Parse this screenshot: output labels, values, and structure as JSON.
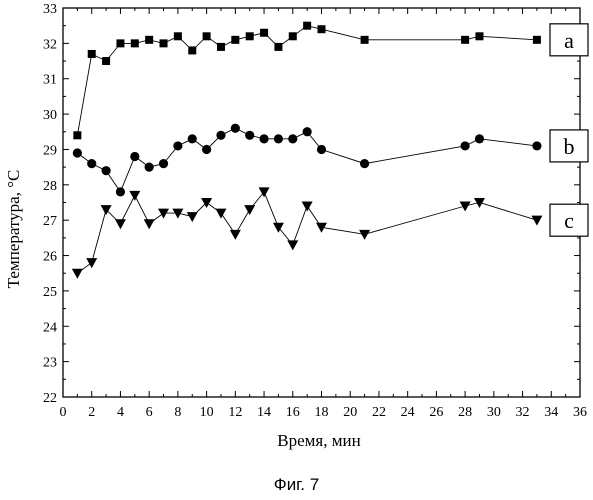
{
  "caption": "Фиг. 7",
  "chart_data": {
    "type": "scatter",
    "xlabel": "Время, мин",
    "ylabel": "Температура, °С",
    "xlim": [
      0,
      36
    ],
    "ylim": [
      22,
      33
    ],
    "xticks": [
      0,
      2,
      4,
      6,
      8,
      10,
      12,
      14,
      16,
      18,
      20,
      22,
      24,
      26,
      28,
      30,
      32,
      34,
      36
    ],
    "yticks": [
      22,
      23,
      24,
      25,
      26,
      27,
      28,
      29,
      30,
      31,
      32,
      33
    ],
    "grid": false,
    "series": [
      {
        "label": "a",
        "marker": "square",
        "x": [
          1,
          2,
          3,
          4,
          5,
          6,
          7,
          8,
          9,
          10,
          11,
          12,
          13,
          14,
          15,
          16,
          17,
          18,
          21,
          28,
          29,
          33
        ],
        "y": [
          29.4,
          31.7,
          31.5,
          32.0,
          32.0,
          32.1,
          32.0,
          32.2,
          31.8,
          32.2,
          31.9,
          32.1,
          32.2,
          32.3,
          31.9,
          32.2,
          32.5,
          32.4,
          32.1,
          32.1,
          32.2,
          32.1
        ]
      },
      {
        "label": "b",
        "marker": "circle",
        "x": [
          1,
          2,
          3,
          4,
          5,
          6,
          7,
          8,
          9,
          10,
          11,
          12,
          13,
          14,
          15,
          16,
          17,
          18,
          21,
          28,
          29,
          33
        ],
        "y": [
          28.9,
          28.6,
          28.4,
          27.8,
          28.8,
          28.5,
          28.6,
          29.1,
          29.3,
          29.0,
          29.4,
          29.6,
          29.4,
          29.3,
          29.3,
          29.3,
          29.5,
          29.0,
          28.6,
          29.1,
          29.3,
          29.1
        ]
      },
      {
        "label": "c",
        "marker": "triangle-down",
        "x": [
          1,
          2,
          3,
          4,
          5,
          6,
          7,
          8,
          9,
          10,
          11,
          12,
          13,
          14,
          15,
          16,
          17,
          18,
          21,
          28,
          29,
          33
        ],
        "y": [
          25.5,
          25.8,
          27.3,
          26.9,
          27.7,
          26.9,
          27.2,
          27.2,
          27.1,
          27.5,
          27.2,
          26.6,
          27.3,
          27.8,
          26.8,
          26.3,
          27.4,
          26.8,
          26.6,
          27.4,
          27.5,
          27.0
        ]
      }
    ]
  }
}
